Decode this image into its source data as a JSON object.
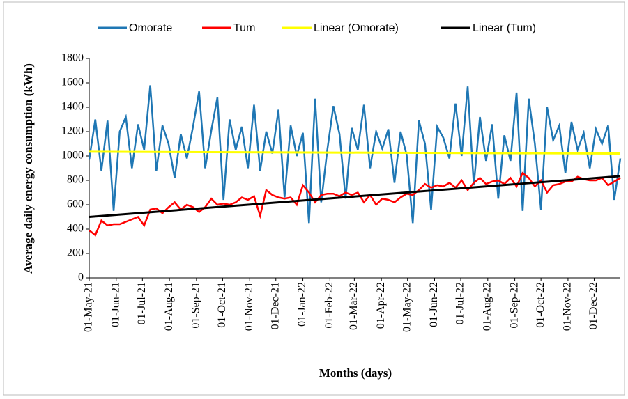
{
  "chart_data": {
    "type": "line",
    "y_label": "Average daily energy consumption (kWh)",
    "x_label": "Months (days)",
    "legend": "top",
    "ylim": [
      0,
      1800
    ],
    "yticks": [
      0,
      200,
      400,
      600,
      800,
      1000,
      1200,
      1400,
      1600,
      1800
    ],
    "xlim": [
      "01-May-21",
      "31-Dec-22"
    ],
    "xticks": [
      "01-May-21",
      "01-Jun-21",
      "01-Jul-21",
      "01-Aug-21",
      "01-Sep-21",
      "01-Oct-21",
      "01-Nov-21",
      "01-Dec-21",
      "01-Jan-22",
      "01-Feb-22",
      "01-Mar-22",
      "01-Apr-22",
      "01-May-22",
      "01-Jun-22",
      "01-Jul-22",
      "01-Aug-22",
      "01-Sep-22",
      "01-Oct-22",
      "01-Nov-22",
      "01-Dec-22"
    ],
    "x": [
      "01-May-21",
      "08-May-21",
      "15-May-21",
      "22-May-21",
      "29-May-21",
      "05-Jun-21",
      "12-Jun-21",
      "19-Jun-21",
      "26-Jun-21",
      "03-Jul-21",
      "10-Jul-21",
      "17-Jul-21",
      "24-Jul-21",
      "31-Jul-21",
      "07-Aug-21",
      "14-Aug-21",
      "21-Aug-21",
      "28-Aug-21",
      "04-Sep-21",
      "11-Sep-21",
      "18-Sep-21",
      "25-Sep-21",
      "02-Oct-21",
      "09-Oct-21",
      "16-Oct-21",
      "23-Oct-21",
      "30-Oct-21",
      "06-Nov-21",
      "13-Nov-21",
      "20-Nov-21",
      "27-Nov-21",
      "04-Dec-21",
      "11-Dec-21",
      "18-Dec-21",
      "25-Dec-21",
      "01-Jan-22",
      "08-Jan-22",
      "15-Jan-22",
      "22-Jan-22",
      "29-Jan-22",
      "05-Feb-22",
      "12-Feb-22",
      "19-Feb-22",
      "26-Feb-22",
      "05-Mar-22",
      "12-Mar-22",
      "19-Mar-22",
      "26-Mar-22",
      "02-Apr-22",
      "09-Apr-22",
      "16-Apr-22",
      "23-Apr-22",
      "30-Apr-22",
      "07-May-22",
      "14-May-22",
      "21-May-22",
      "28-May-22",
      "04-Jun-22",
      "11-Jun-22",
      "18-Jun-22",
      "25-Jun-22",
      "02-Jul-22",
      "09-Jul-22",
      "16-Jul-22",
      "23-Jul-22",
      "30-Jul-22",
      "06-Aug-22",
      "13-Aug-22",
      "20-Aug-22",
      "27-Aug-22",
      "03-Sep-22",
      "10-Sep-22",
      "17-Sep-22",
      "24-Sep-22",
      "01-Oct-22",
      "08-Oct-22",
      "15-Oct-22",
      "22-Oct-22",
      "29-Oct-22",
      "05-Nov-22",
      "12-Nov-22",
      "19-Nov-22",
      "26-Nov-22",
      "03-Dec-22",
      "10-Dec-22",
      "17-Dec-22",
      "24-Dec-22",
      "31-Dec-22"
    ],
    "series": [
      {
        "name": "Omorate",
        "color": "#1f77b4",
        "values": [
          970,
          1300,
          880,
          1290,
          550,
          1200,
          1320,
          900,
          1260,
          1050,
          1580,
          880,
          1250,
          1100,
          820,
          1180,
          980,
          1240,
          1530,
          900,
          1210,
          1480,
          640,
          1300,
          1050,
          1240,
          900,
          1420,
          880,
          1200,
          1020,
          1380,
          660,
          1250,
          1000,
          1190,
          450,
          1470,
          620,
          1050,
          1410,
          1180,
          650,
          1230,
          1050,
          1420,
          900,
          1200,
          1060,
          1220,
          780,
          1200,
          1010,
          450,
          1290,
          1100,
          560,
          1240,
          1150,
          980,
          1430,
          1000,
          1570,
          760,
          1320,
          960,
          1260,
          650,
          1170,
          960,
          1520,
          550,
          1470,
          1100,
          560,
          1400,
          1130,
          1250,
          860,
          1280,
          1050,
          1190,
          900,
          1220,
          1100,
          1250,
          640,
          980
        ]
      },
      {
        "name": "Tum",
        "color": "#ff0000",
        "values": [
          390,
          350,
          470,
          430,
          440,
          440,
          460,
          480,
          500,
          430,
          560,
          570,
          530,
          580,
          620,
          560,
          600,
          580,
          540,
          580,
          650,
          600,
          610,
          600,
          620,
          660,
          640,
          670,
          510,
          720,
          680,
          660,
          650,
          660,
          600,
          760,
          700,
          620,
          680,
          690,
          690,
          670,
          700,
          680,
          700,
          620,
          680,
          600,
          650,
          640,
          620,
          660,
          690,
          680,
          720,
          770,
          740,
          760,
          750,
          780,
          740,
          800,
          720,
          780,
          820,
          770,
          790,
          800,
          770,
          820,
          750,
          860,
          820,
          750,
          800,
          700,
          760,
          770,
          790,
          790,
          830,
          810,
          800,
          800,
          820,
          760,
          790,
          820
        ]
      },
      {
        "name": "Linear (Omorate)",
        "color": "#ffff00",
        "x": [
          "01-May-21",
          "31-Dec-22"
        ],
        "values": [
          1035,
          1020
        ]
      },
      {
        "name": "Linear (Tum)",
        "color": "#000000",
        "x": [
          "01-May-21",
          "31-Dec-22"
        ],
        "values": [
          500,
          835
        ]
      }
    ]
  }
}
